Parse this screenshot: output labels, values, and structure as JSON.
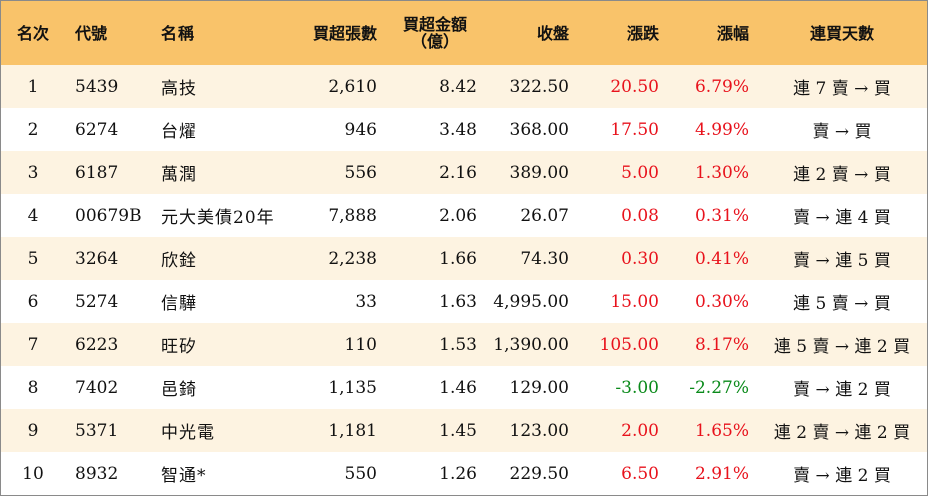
{
  "headers": {
    "rank": "名次",
    "code": "代號",
    "name": "名稱",
    "net_lots": "買超張數",
    "net_amount_line1": "買超金額",
    "net_amount_line2": "（億）",
    "close": "收盤",
    "change": "漲跌",
    "pct": "漲幅",
    "streak": "連買天數"
  },
  "colors": {
    "header_bg": "#f9c36a",
    "odd_row_bg": "#fdf3e1",
    "up": "#e8121c",
    "down": "#0a8a1a"
  },
  "rows": [
    {
      "rank": "1",
      "code": "5439",
      "name": "高技",
      "net_lots": "2,610",
      "net_amount": "8.42",
      "close": "322.50",
      "change": "20.50",
      "pct": "6.79%",
      "streak": "連 7 賣 → 買",
      "direction": "up"
    },
    {
      "rank": "2",
      "code": "6274",
      "name": "台燿",
      "net_lots": "946",
      "net_amount": "3.48",
      "close": "368.00",
      "change": "17.50",
      "pct": "4.99%",
      "streak": "賣 → 買",
      "direction": "up"
    },
    {
      "rank": "3",
      "code": "6187",
      "name": "萬潤",
      "net_lots": "556",
      "net_amount": "2.16",
      "close": "389.00",
      "change": "5.00",
      "pct": "1.30%",
      "streak": "連 2 賣 → 買",
      "direction": "up"
    },
    {
      "rank": "4",
      "code": "00679B",
      "name": "元大美債20年",
      "net_lots": "7,888",
      "net_amount": "2.06",
      "close": "26.07",
      "change": "0.08",
      "pct": "0.31%",
      "streak": "賣 → 連 4 買",
      "direction": "up"
    },
    {
      "rank": "5",
      "code": "3264",
      "name": "欣銓",
      "net_lots": "2,238",
      "net_amount": "1.66",
      "close": "74.30",
      "change": "0.30",
      "pct": "0.41%",
      "streak": "賣 → 連 5 買",
      "direction": "up"
    },
    {
      "rank": "6",
      "code": "5274",
      "name": "信驊",
      "net_lots": "33",
      "net_amount": "1.63",
      "close": "4,995.00",
      "change": "15.00",
      "pct": "0.30%",
      "streak": "連 5 賣 → 買",
      "direction": "up"
    },
    {
      "rank": "7",
      "code": "6223",
      "name": "旺矽",
      "net_lots": "110",
      "net_amount": "1.53",
      "close": "1,390.00",
      "change": "105.00",
      "pct": "8.17%",
      "streak": "連 5 賣 → 連 2 買",
      "direction": "up"
    },
    {
      "rank": "8",
      "code": "7402",
      "name": "邑錡",
      "net_lots": "1,135",
      "net_amount": "1.46",
      "close": "129.00",
      "change": "-3.00",
      "pct": "-2.27%",
      "streak": "賣 → 連 2 買",
      "direction": "down"
    },
    {
      "rank": "9",
      "code": "5371",
      "name": "中光電",
      "net_lots": "1,181",
      "net_amount": "1.45",
      "close": "123.00",
      "change": "2.00",
      "pct": "1.65%",
      "streak": "連 2 賣 → 連 2 買",
      "direction": "up"
    },
    {
      "rank": "10",
      "code": "8932",
      "name": "智通*",
      "net_lots": "550",
      "net_amount": "1.26",
      "close": "229.50",
      "change": "6.50",
      "pct": "2.91%",
      "streak": "賣 → 連 2 買",
      "direction": "up"
    }
  ]
}
